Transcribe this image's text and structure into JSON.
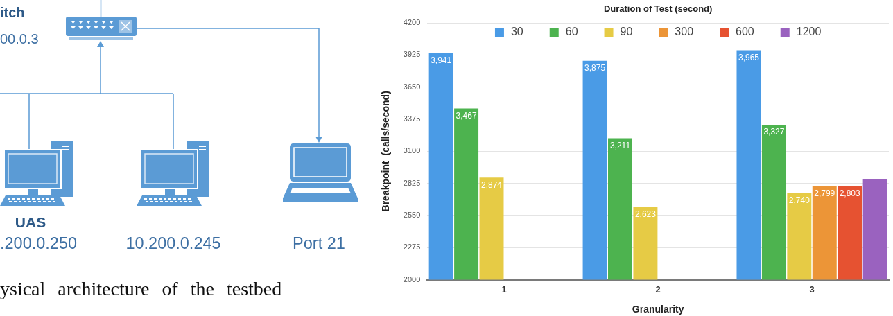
{
  "chart_data": [
    {
      "type": "other",
      "annotations": [
        "itch",
        "00.0.3",
        "UAS",
        ".200.0.250",
        "10.200.0.245",
        "Port 21",
        "ysical architecture of the testbed"
      ]
    },
    {
      "type": "bar",
      "legend_title": "Duration of Test (second)",
      "xlabel": "Granularity",
      "ylabel": "Breakpoint  (calls/second)",
      "categories": [
        "1",
        "2",
        "3"
      ],
      "series": [
        {
          "name": "30",
          "color": "#4a9be6",
          "values": [
            3941,
            3875,
            3965
          ],
          "value_labels": [
            "3,941",
            "3,875",
            "3,965"
          ]
        },
        {
          "name": "60",
          "color": "#4db34f",
          "values": [
            3467,
            3211,
            3327
          ],
          "value_labels": [
            "3,467",
            "3,211",
            "3,327"
          ]
        },
        {
          "name": "90",
          "color": "#e6cb45",
          "values": [
            2874,
            2623,
            2740
          ],
          "value_labels": [
            "2,874",
            "2,623",
            "2,740"
          ]
        },
        {
          "name": "300",
          "color": "#ec9537",
          "values": [
            null,
            null,
            2799
          ],
          "value_labels": [
            null,
            null,
            "2,799"
          ]
        },
        {
          "name": "600",
          "color": "#e65231",
          "values": [
            null,
            null,
            2803
          ],
          "value_labels": [
            null,
            null,
            "2,803"
          ]
        },
        {
          "name": "1200",
          "color": "#9a62bf",
          "values": [
            null,
            null,
            2860
          ],
          "value_labels": [
            null,
            null,
            null
          ]
        }
      ],
      "ylim": [
        2000,
        4200
      ],
      "yticks": [
        2000,
        2275,
        2550,
        2825,
        3100,
        3375,
        3650,
        3925,
        4200
      ],
      "grid": "y",
      "legend": "top"
    }
  ]
}
